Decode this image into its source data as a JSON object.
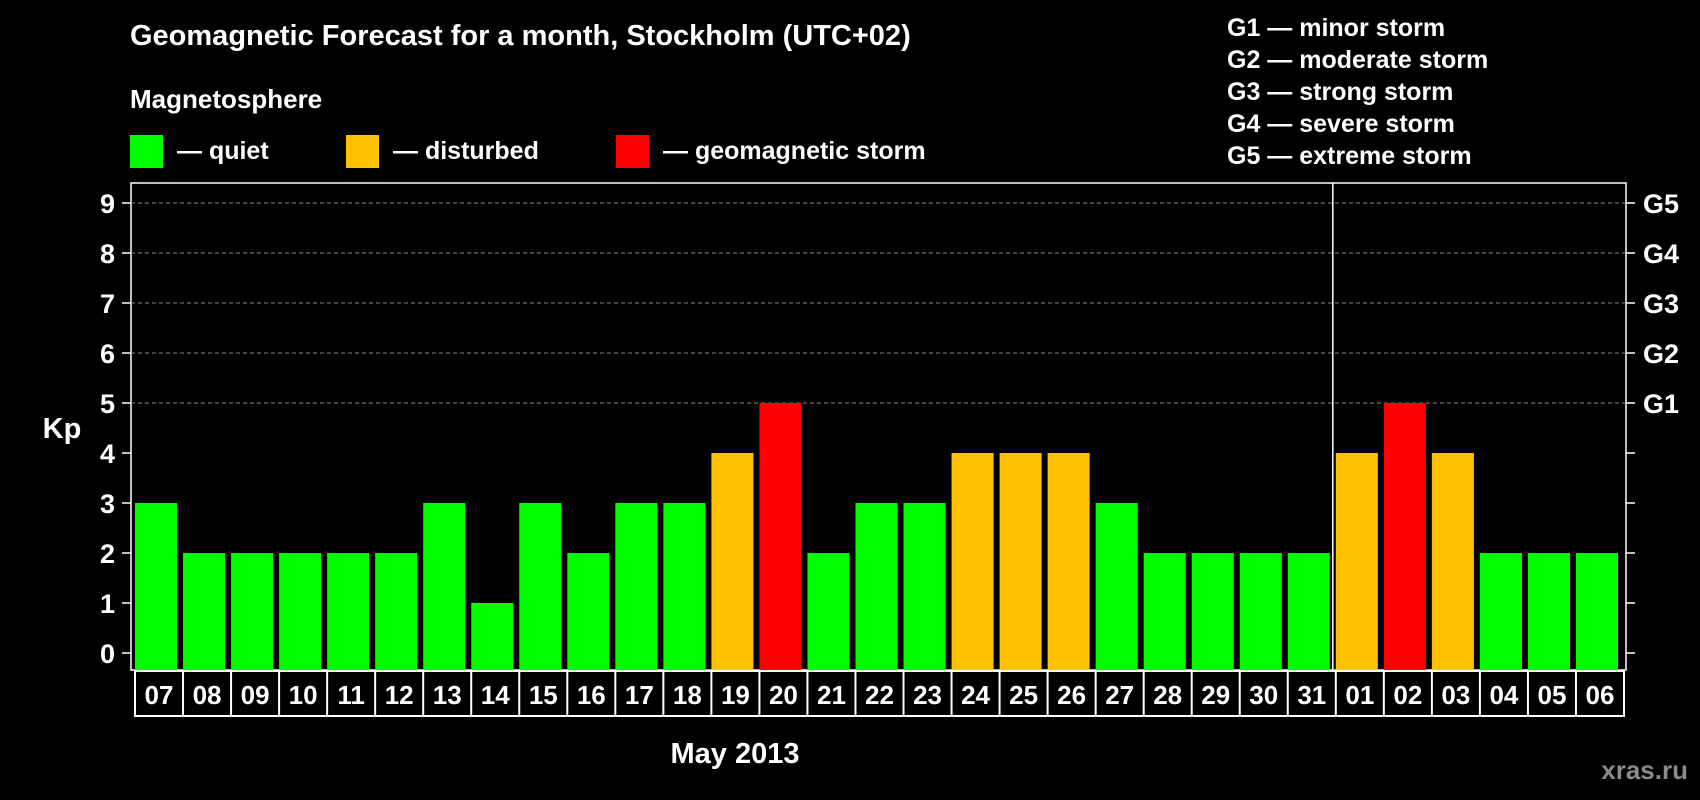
{
  "chart_data": {
    "type": "bar",
    "title": "Geomagnetic Forecast for a month, Stockholm (UTC+02)",
    "subtitle": "Magnetosphere",
    "ylabel": "Kp",
    "xlabel": "May 2013",
    "ylim": [
      0,
      9
    ],
    "yticks": [
      "0",
      "1",
      "2",
      "3",
      "4",
      "5",
      "6",
      "7",
      "8",
      "9"
    ],
    "right_ticks": [
      {
        "value": 5,
        "label": "G1"
      },
      {
        "value": 6,
        "label": "G2"
      },
      {
        "value": 7,
        "label": "G3"
      },
      {
        "value": 8,
        "label": "G4"
      },
      {
        "value": 9,
        "label": "G5"
      }
    ],
    "categories": [
      "07",
      "08",
      "09",
      "10",
      "11",
      "12",
      "13",
      "14",
      "15",
      "16",
      "17",
      "18",
      "19",
      "20",
      "21",
      "22",
      "23",
      "24",
      "25",
      "26",
      "27",
      "28",
      "29",
      "30",
      "31",
      "01",
      "02",
      "03",
      "04",
      "05",
      "06"
    ],
    "values": [
      3,
      2,
      2,
      2,
      2,
      2,
      3,
      1,
      3,
      2,
      3,
      3,
      4,
      5,
      2,
      3,
      3,
      4,
      4,
      4,
      3,
      2,
      2,
      2,
      2,
      4,
      5,
      4,
      2,
      2,
      2
    ],
    "month_divider_after": "31",
    "legend": [
      {
        "label": "— quiet",
        "color": "#00ff00"
      },
      {
        "label": "— disturbed",
        "color": "#ffc000"
      },
      {
        "label": "— geomagnetic storm",
        "color": "#ff0000"
      }
    ],
    "storm_scale": [
      "G1 — minor storm",
      "G2 — moderate storm",
      "G3 — strong storm",
      "G4 — severe storm",
      "G5 — extreme storm"
    ],
    "colors": {
      "quiet": "#00ff00",
      "disturbed": "#ffc000",
      "storm": "#ff0000"
    },
    "watermark": "xras.ru"
  }
}
